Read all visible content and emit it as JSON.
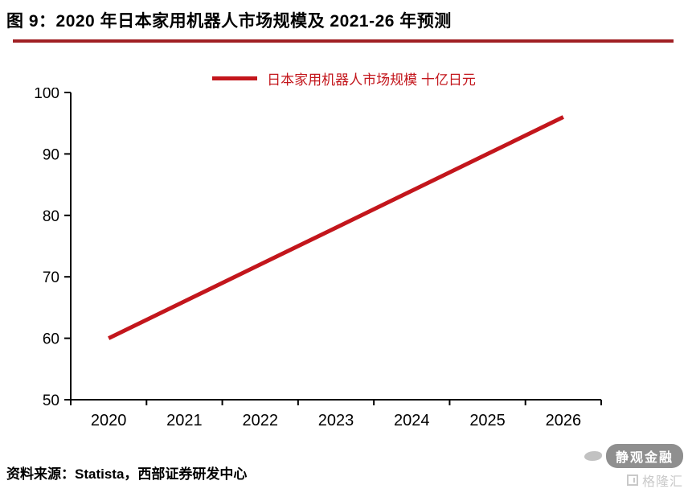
{
  "header": {
    "title": "图 9：2020 年日本家用机器人市场规模及 2021-26 年预测"
  },
  "footer": {
    "source": "资料来源：Statista，西部证券研发中心"
  },
  "watermark": {
    "name": "静观金融",
    "brand": "格隆汇"
  },
  "colors": {
    "accent": "#c3161c",
    "title_rule": "#a02024",
    "axis": "#000000",
    "watermark_gray": "#8f8f8f",
    "brand_gray": "#c9c9c9"
  },
  "chart_data": {
    "type": "line",
    "x": [
      "2020",
      "2021",
      "2022",
      "2023",
      "2024",
      "2025",
      "2026"
    ],
    "series": [
      {
        "name": "日本家用机器人市场规模 十亿日元",
        "values": [
          60,
          66,
          72,
          78,
          84,
          90,
          96
        ]
      }
    ],
    "title": "",
    "xlabel": "",
    "ylabel": "",
    "ylim": [
      50,
      100
    ],
    "ytick_step": 10,
    "grid": false,
    "legend_position": "top-center"
  }
}
